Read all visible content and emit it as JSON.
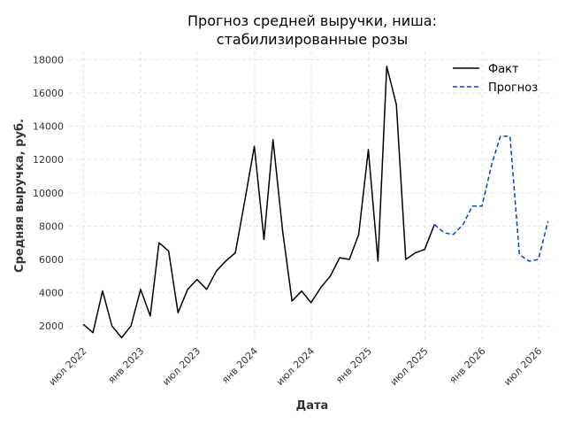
{
  "chart_data": {
    "type": "line",
    "title_line1": "Прогноз средней выручки, ниша:",
    "title_line2": "стабилизированные розы",
    "xlabel": "Дата",
    "ylabel": "Средняя выручка, руб.",
    "ylim": [
      1000,
      18500
    ],
    "xlim": [
      "2022-05-15",
      "2026-08-15"
    ],
    "grid": true,
    "legend_position": "top-right",
    "x_ticks": [
      {
        "date": "2022-07-01",
        "label": "июл 2022"
      },
      {
        "date": "2023-01-01",
        "label": "янв 2023"
      },
      {
        "date": "2023-07-01",
        "label": "июл 2023"
      },
      {
        "date": "2024-01-01",
        "label": "янв 2024"
      },
      {
        "date": "2024-07-01",
        "label": "июл 2024"
      },
      {
        "date": "2025-01-01",
        "label": "янв 2025"
      },
      {
        "date": "2025-07-01",
        "label": "июл 2025"
      },
      {
        "date": "2026-01-01",
        "label": "янв 2026"
      },
      {
        "date": "2026-07-01",
        "label": "июл 2026"
      }
    ],
    "y_ticks": [
      2000,
      4000,
      6000,
      8000,
      10000,
      12000,
      14000,
      16000,
      18000
    ],
    "y_tick_labels": [
      "2000",
      "4000",
      "6000",
      "8000",
      "10000",
      "12000",
      "14000",
      "16000",
      "18000"
    ],
    "series": [
      {
        "name": "Факт",
        "color": "#000000",
        "style": "solid",
        "points": [
          [
            "2022-06-30",
            2100
          ],
          [
            "2022-07-31",
            1600
          ],
          [
            "2022-08-31",
            4100
          ],
          [
            "2022-09-30",
            2000
          ],
          [
            "2022-10-31",
            1300
          ],
          [
            "2022-11-30",
            2000
          ],
          [
            "2022-12-31",
            4200
          ],
          [
            "2023-01-31",
            2600
          ],
          [
            "2023-02-28",
            7000
          ],
          [
            "2023-03-31",
            6500
          ],
          [
            "2023-04-30",
            2800
          ],
          [
            "2023-05-31",
            4200
          ],
          [
            "2023-06-30",
            4800
          ],
          [
            "2023-07-31",
            4200
          ],
          [
            "2023-08-31",
            5300
          ],
          [
            "2023-09-30",
            5900
          ],
          [
            "2023-10-31",
            6400
          ],
          [
            "2023-11-30",
            9500
          ],
          [
            "2023-12-31",
            12800
          ],
          [
            "2024-01-31",
            7200
          ],
          [
            "2024-02-29",
            13200
          ],
          [
            "2024-03-31",
            7700
          ],
          [
            "2024-04-30",
            3500
          ],
          [
            "2024-05-31",
            4100
          ],
          [
            "2024-06-30",
            3400
          ],
          [
            "2024-07-31",
            4300
          ],
          [
            "2024-08-31",
            5000
          ],
          [
            "2024-09-30",
            6100
          ],
          [
            "2024-10-31",
            6000
          ],
          [
            "2024-11-30",
            7500
          ],
          [
            "2024-12-31",
            12600
          ],
          [
            "2025-01-31",
            5900
          ],
          [
            "2025-02-28",
            17600
          ],
          [
            "2025-03-31",
            15300
          ],
          [
            "2025-04-30",
            6000
          ],
          [
            "2025-05-31",
            6400
          ],
          [
            "2025-06-30",
            6600
          ],
          [
            "2025-07-31",
            8100
          ]
        ]
      },
      {
        "name": "Прогноз",
        "color": "#0044cc",
        "style": "dashed",
        "points": [
          [
            "2025-07-31",
            8100
          ],
          [
            "2025-08-31",
            7600
          ],
          [
            "2025-09-30",
            7500
          ],
          [
            "2025-10-31",
            8100
          ],
          [
            "2025-11-30",
            9200
          ],
          [
            "2025-12-31",
            9200
          ],
          [
            "2026-01-31",
            11700
          ],
          [
            "2026-02-28",
            13400
          ],
          [
            "2026-03-31",
            13400
          ],
          [
            "2026-04-30",
            6300
          ],
          [
            "2026-05-31",
            5900
          ],
          [
            "2026-06-30",
            6000
          ],
          [
            "2026-07-31",
            8300
          ]
        ]
      }
    ]
  }
}
